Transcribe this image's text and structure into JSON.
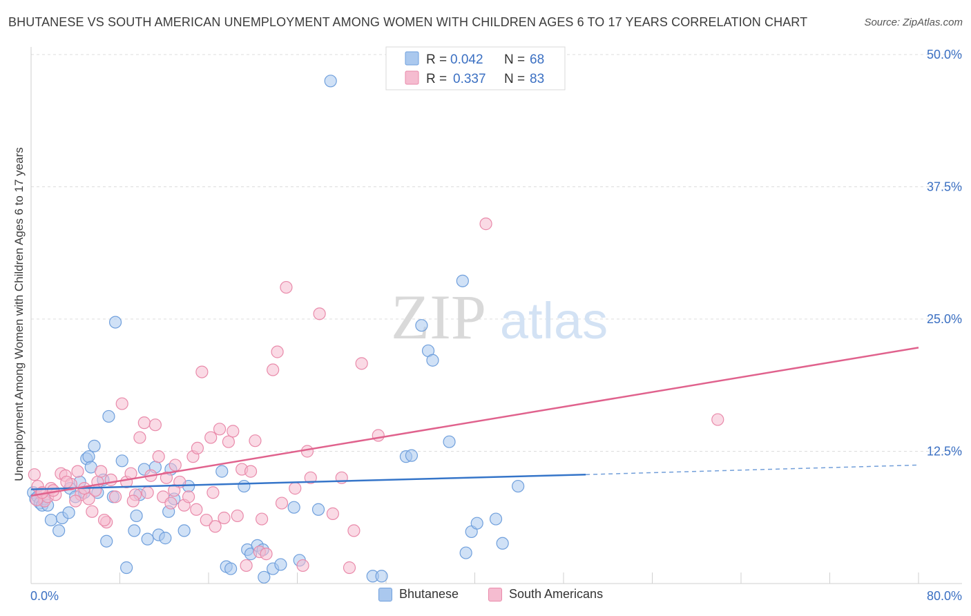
{
  "title": "BHUTANESE VS SOUTH AMERICAN UNEMPLOYMENT AMONG WOMEN WITH CHILDREN AGES 6 TO 17 YEARS CORRELATION CHART",
  "source": "Source: ZipAtlas.com",
  "watermark": {
    "zip": "ZIP",
    "atlas": "atlas"
  },
  "colors": {
    "blue_fill": "#aac8ee",
    "blue_stroke": "#6f9fdc",
    "blue_line": "#3575c9",
    "pink_fill": "#f5bcd0",
    "pink_stroke": "#e98aaa",
    "pink_line": "#e0628d",
    "accent_text": "#3a6fc2",
    "grid": "#dcdcdc"
  },
  "legend_top": [
    {
      "r_label": "R =",
      "r_value": "0.042",
      "n_label": "N =",
      "n_value": "68"
    },
    {
      "r_label": "R =",
      "r_value": "0.337",
      "n_label": "N =",
      "n_value": "83"
    }
  ],
  "chart_data": {
    "type": "scatter",
    "title": "BHUTANESE VS SOUTH AMERICAN UNEMPLOYMENT AMONG WOMEN WITH CHILDREN AGES 6 TO 17 YEARS CORRELATION CHART",
    "xlabel": "",
    "ylabel": "Unemployment Among Women with Children Ages 6 to 17 years",
    "xlim": [
      0,
      80
    ],
    "ylim": [
      0,
      50
    ],
    "x_tick_labels": [
      "0.0%",
      "80.0%"
    ],
    "y_ticks": [
      12.5,
      25.0,
      37.5,
      50.0
    ],
    "y_tick_labels": [
      "12.5%",
      "25.0%",
      "37.5%",
      "50.0%"
    ],
    "grid": true,
    "legend_position": "top-center",
    "series": [
      {
        "name": "Bhutanese",
        "r": 0.042,
        "n": 68,
        "trend": {
          "x0": 0,
          "y0": 8.9,
          "x1": 50,
          "y1": 10.3,
          "dashed_to_x": 80,
          "dashed_to_y": 11.2
        },
        "points": [
          [
            0.2,
            8.6
          ],
          [
            0.4,
            8.0
          ],
          [
            0.6,
            8.2
          ],
          [
            0.8,
            7.6
          ],
          [
            1.0,
            7.4
          ],
          [
            1.2,
            8.0
          ],
          [
            1.5,
            7.4
          ],
          [
            1.8,
            6.0
          ],
          [
            2.5,
            5.0
          ],
          [
            2.8,
            6.2
          ],
          [
            3.4,
            6.7
          ],
          [
            3.5,
            9.0
          ],
          [
            4.0,
            8.2
          ],
          [
            4.4,
            9.6
          ],
          [
            4.8,
            8.6
          ],
          [
            5.0,
            11.8
          ],
          [
            5.2,
            12.0
          ],
          [
            5.4,
            11.0
          ],
          [
            5.7,
            13.0
          ],
          [
            6.0,
            8.6
          ],
          [
            6.5,
            9.8
          ],
          [
            6.8,
            4.0
          ],
          [
            7.0,
            15.8
          ],
          [
            7.4,
            8.2
          ],
          [
            7.6,
            24.7
          ],
          [
            8.2,
            11.6
          ],
          [
            8.6,
            1.5
          ],
          [
            9.3,
            5.0
          ],
          [
            9.5,
            6.4
          ],
          [
            9.8,
            8.4
          ],
          [
            10.2,
            10.8
          ],
          [
            10.5,
            4.2
          ],
          [
            11.2,
            11.0
          ],
          [
            11.5,
            4.6
          ],
          [
            12.1,
            4.3
          ],
          [
            12.4,
            6.8
          ],
          [
            12.6,
            10.8
          ],
          [
            12.9,
            8.0
          ],
          [
            13.8,
            5.0
          ],
          [
            14.2,
            9.2
          ],
          [
            17.2,
            10.6
          ],
          [
            17.6,
            1.6
          ],
          [
            18.0,
            1.4
          ],
          [
            19.2,
            9.2
          ],
          [
            19.5,
            3.2
          ],
          [
            19.8,
            2.8
          ],
          [
            20.4,
            3.6
          ],
          [
            20.9,
            3.2
          ],
          [
            21.0,
            0.6
          ],
          [
            21.8,
            1.4
          ],
          [
            22.5,
            1.8
          ],
          [
            23.7,
            7.2
          ],
          [
            24.2,
            2.2
          ],
          [
            25.9,
            7.0
          ],
          [
            27.0,
            47.5
          ],
          [
            30.8,
            0.7
          ],
          [
            31.6,
            0.7
          ],
          [
            33.8,
            12.0
          ],
          [
            34.3,
            12.1
          ],
          [
            35.2,
            24.4
          ],
          [
            35.8,
            22.0
          ],
          [
            36.2,
            21.1
          ],
          [
            37.7,
            13.4
          ],
          [
            38.9,
            28.6
          ],
          [
            39.2,
            2.9
          ],
          [
            39.7,
            4.9
          ],
          [
            40.2,
            5.7
          ],
          [
            41.9,
            6.1
          ],
          [
            42.5,
            3.8
          ],
          [
            43.9,
            9.2
          ]
        ]
      },
      {
        "name": "South Americans",
        "r": 0.337,
        "n": 83,
        "trend": {
          "x0": 0,
          "y0": 8.3,
          "x1": 80,
          "y1": 22.3
        },
        "points": [
          [
            0.3,
            10.3
          ],
          [
            0.6,
            9.2
          ],
          [
            0.9,
            8.5
          ],
          [
            1.2,
            7.8
          ],
          [
            1.5,
            8.2
          ],
          [
            1.8,
            9.0
          ],
          [
            2.2,
            8.4
          ],
          [
            2.7,
            10.4
          ],
          [
            3.1,
            10.2
          ],
          [
            3.6,
            9.4
          ],
          [
            4.2,
            10.6
          ],
          [
            4.5,
            8.4
          ],
          [
            4.8,
            9.0
          ],
          [
            5.2,
            8.0
          ],
          [
            5.5,
            6.8
          ],
          [
            6.0,
            9.6
          ],
          [
            6.3,
            10.6
          ],
          [
            6.8,
            5.8
          ],
          [
            7.2,
            9.8
          ],
          [
            7.6,
            8.2
          ],
          [
            8.2,
            17.0
          ],
          [
            8.6,
            9.6
          ],
          [
            9.0,
            10.4
          ],
          [
            9.4,
            8.4
          ],
          [
            9.8,
            13.8
          ],
          [
            10.2,
            15.2
          ],
          [
            10.5,
            8.6
          ],
          [
            10.8,
            10.2
          ],
          [
            11.2,
            15.0
          ],
          [
            11.5,
            12.0
          ],
          [
            11.9,
            8.2
          ],
          [
            12.2,
            10.0
          ],
          [
            12.6,
            7.6
          ],
          [
            13.0,
            11.2
          ],
          [
            13.4,
            9.6
          ],
          [
            13.8,
            7.4
          ],
          [
            14.2,
            8.2
          ],
          [
            14.6,
            12.0
          ],
          [
            15.0,
            12.8
          ],
          [
            15.4,
            20.0
          ],
          [
            15.8,
            6.0
          ],
          [
            16.2,
            13.8
          ],
          [
            16.6,
            5.4
          ],
          [
            17.0,
            14.6
          ],
          [
            17.4,
            6.2
          ],
          [
            17.8,
            13.4
          ],
          [
            18.2,
            14.4
          ],
          [
            18.6,
            6.4
          ],
          [
            19.0,
            10.8
          ],
          [
            19.4,
            1.7
          ],
          [
            19.8,
            10.6
          ],
          [
            20.2,
            13.5
          ],
          [
            20.6,
            3.0
          ],
          [
            20.8,
            6.1
          ],
          [
            21.2,
            2.8
          ],
          [
            21.8,
            20.2
          ],
          [
            22.2,
            21.9
          ],
          [
            22.6,
            7.6
          ],
          [
            23.0,
            28.0
          ],
          [
            23.8,
            9.0
          ],
          [
            24.5,
            1.7
          ],
          [
            24.9,
            12.5
          ],
          [
            25.2,
            10.0
          ],
          [
            26.0,
            25.5
          ],
          [
            27.2,
            6.6
          ],
          [
            28.0,
            10.0
          ],
          [
            28.7,
            1.5
          ],
          [
            29.1,
            5.0
          ],
          [
            29.8,
            20.8
          ],
          [
            31.3,
            14.0
          ],
          [
            41.0,
            34.0
          ],
          [
            61.9,
            15.5
          ],
          [
            0.5,
            7.9
          ],
          [
            1.0,
            8.6
          ],
          [
            2.0,
            8.8
          ],
          [
            3.2,
            9.6
          ],
          [
            4.0,
            7.8
          ],
          [
            5.8,
            8.8
          ],
          [
            6.6,
            6.0
          ],
          [
            9.2,
            7.8
          ],
          [
            12.9,
            8.8
          ],
          [
            14.9,
            7.0
          ],
          [
            16.4,
            8.6
          ]
        ]
      }
    ]
  }
}
